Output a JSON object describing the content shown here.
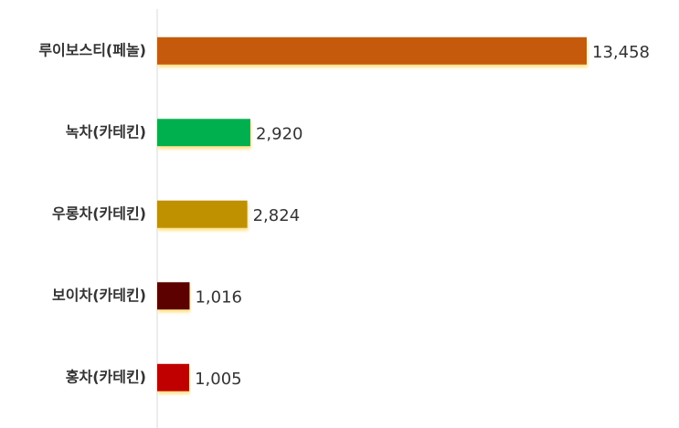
{
  "chart_data": {
    "type": "hbar",
    "categories": [
      "루이보스티(페놀)",
      "녹차(카테킨)",
      "우롱차(카테킨)",
      "보이차(카테킨)",
      "홍차(카테킨)"
    ],
    "values": [
      13458,
      2920,
      2824,
      1016,
      1005
    ],
    "value_labels": [
      "13,458",
      "2,920",
      "2,824",
      "1,016",
      "1,005"
    ],
    "colors": [
      "#c55a11",
      "#00b050",
      "#bf9000",
      "#5b0000",
      "#c00000"
    ]
  }
}
